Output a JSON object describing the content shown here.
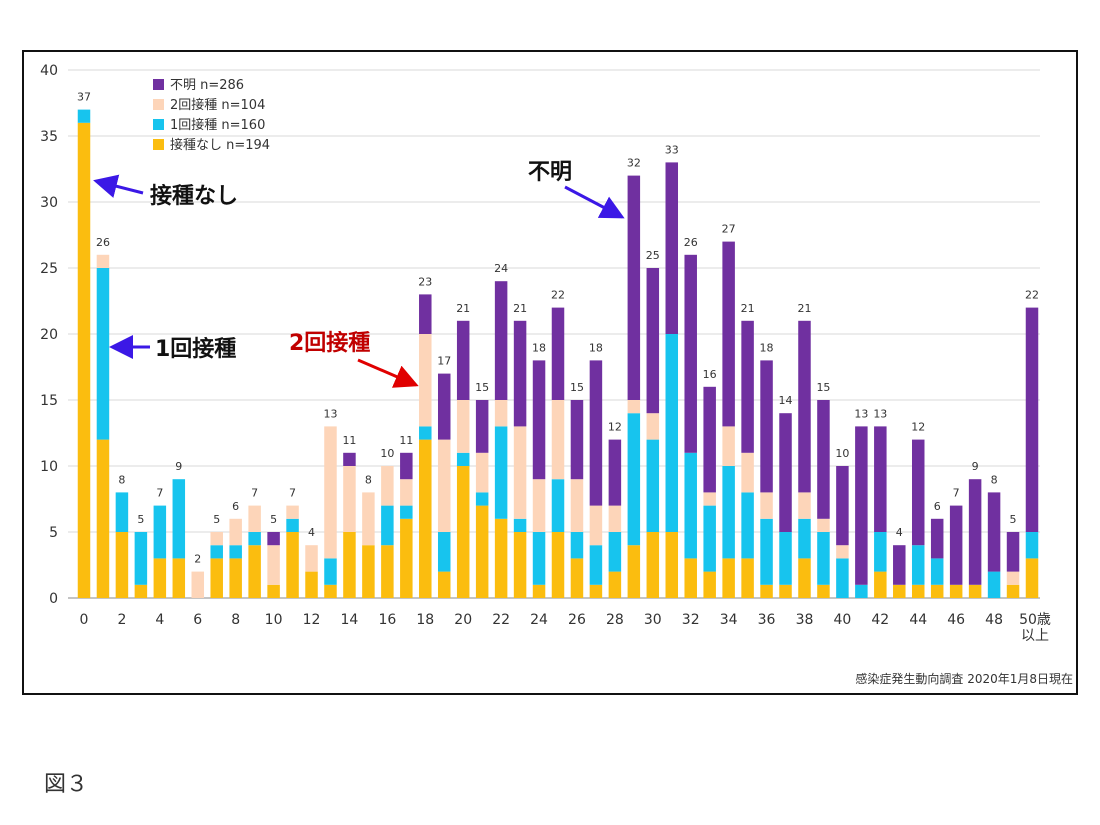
{
  "chart_data": {
    "type": "bar",
    "stacked": true,
    "categories": [
      "0",
      "1",
      "2",
      "3",
      "4",
      "5",
      "6",
      "7",
      "8",
      "9",
      "10",
      "11",
      "12",
      "13",
      "14",
      "15",
      "16",
      "17",
      "18",
      "19",
      "20",
      "21",
      "22",
      "23",
      "24",
      "25",
      "26",
      "27",
      "28",
      "29",
      "30",
      "31",
      "32",
      "33",
      "34",
      "35",
      "36",
      "37",
      "38",
      "39",
      "40",
      "41",
      "42",
      "43",
      "44",
      "45",
      "46",
      "47",
      "48",
      "49",
      "50歳以上"
    ],
    "tick_labels": [
      "0",
      "2",
      "4",
      "6",
      "8",
      "10",
      "12",
      "14",
      "16",
      "18",
      "20",
      "22",
      "24",
      "26",
      "28",
      "30",
      "32",
      "34",
      "36",
      "38",
      "40",
      "42",
      "44",
      "46",
      "48",
      "50歳",
      "以上"
    ],
    "ylim": [
      0,
      40
    ],
    "yticks": [
      "0",
      "5",
      "10",
      "15",
      "20",
      "25",
      "30",
      "35",
      "40"
    ],
    "grid": true,
    "legend_position": "top-left",
    "series": [
      {
        "name": "接種なし n=194",
        "color": "#fbbd0f",
        "values": [
          36,
          12,
          5,
          1,
          3,
          3,
          0,
          3,
          3,
          4,
          1,
          5,
          2,
          1,
          5,
          4,
          4,
          6,
          12,
          2,
          10,
          7,
          6,
          5,
          1,
          5,
          3,
          1,
          2,
          4,
          5,
          5,
          3,
          2,
          3,
          3,
          1,
          1,
          3,
          1,
          0,
          0,
          2,
          1,
          1,
          1,
          1,
          1,
          0,
          1,
          3
        ]
      },
      {
        "name": "1回接種 n=160",
        "color": "#17c4ee",
        "values": [
          1,
          13,
          3,
          4,
          4,
          6,
          0,
          1,
          1,
          1,
          0,
          1,
          0,
          2,
          0,
          0,
          3,
          1,
          1,
          3,
          1,
          1,
          7,
          1,
          4,
          4,
          2,
          3,
          3,
          10,
          7,
          15,
          8,
          5,
          7,
          5,
          5,
          4,
          3,
          4,
          3,
          1,
          3,
          0,
          3,
          2,
          0,
          0,
          2,
          0,
          2
        ]
      },
      {
        "name": "2回接種 n=104",
        "color": "#fdd5b9",
        "values": [
          0,
          1,
          0,
          0,
          0,
          0,
          2,
          1,
          2,
          2,
          3,
          1,
          2,
          10,
          5,
          4,
          3,
          2,
          7,
          7,
          4,
          3,
          2,
          7,
          4,
          6,
          4,
          3,
          2,
          1,
          2,
          0,
          0,
          1,
          3,
          3,
          2,
          0,
          2,
          1,
          1,
          0,
          0,
          0,
          0,
          0,
          0,
          0,
          0,
          1,
          0
        ]
      },
      {
        "name": "不明 n=286",
        "color": "#7030a0",
        "values": [
          0,
          0,
          0,
          0,
          0,
          0,
          0,
          0,
          0,
          0,
          1,
          0,
          0,
          0,
          1,
          0,
          0,
          2,
          3,
          5,
          6,
          4,
          9,
          8,
          9,
          7,
          6,
          11,
          5,
          17,
          11,
          13,
          15,
          8,
          14,
          10,
          10,
          9,
          13,
          9,
          6,
          12,
          8,
          3,
          8,
          3,
          6,
          8,
          6,
          3,
          17
        ]
      }
    ],
    "totals": [
      37,
      26,
      8,
      5,
      7,
      9,
      2,
      5,
      6,
      7,
      5,
      7,
      4,
      13,
      11,
      8,
      10,
      11,
      23,
      17,
      21,
      15,
      24,
      21,
      18,
      22,
      15,
      18,
      12,
      32,
      25,
      33,
      26,
      16,
      27,
      21,
      18,
      14,
      21,
      15,
      10,
      13,
      13,
      4,
      12,
      6,
      7,
      9,
      8,
      5,
      22
    ]
  },
  "annotations": {
    "none": {
      "text": "接種なし",
      "color": "#111111",
      "arrow_color": "#3b18e6"
    },
    "one": {
      "text": "1回接種",
      "color": "#111111",
      "arrow_color": "#3b18e6"
    },
    "two": {
      "text": "2回接種",
      "color": "#c00000",
      "arrow_color": "#e00000"
    },
    "unknown": {
      "text": "不明",
      "color": "#111111",
      "arrow_color": "#3b18e6"
    }
  },
  "source": "感染症発生動向調査 2020年1月8日現在",
  "figure_caption": "図３"
}
